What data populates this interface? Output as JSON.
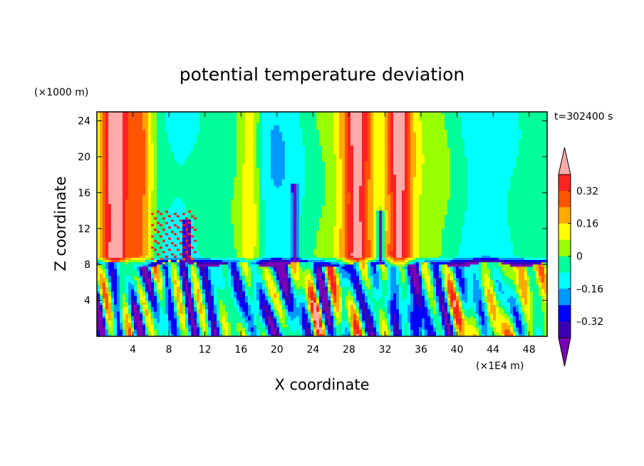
{
  "chart_data": {
    "type": "heatmap",
    "title": "potential temperature deviation",
    "xlabel": "X coordinate",
    "ylabel": "Z coordinate",
    "x_unit": "(×1E4 m)",
    "y_unit": "(×1000 m)",
    "time_label": "t=302400 s",
    "xlim": [
      0,
      50
    ],
    "ylim": [
      0,
      25
    ],
    "x_ticks": [
      4,
      8,
      12,
      16,
      20,
      24,
      28,
      32,
      36,
      40,
      44,
      48
    ],
    "y_ticks": [
      4,
      8,
      12,
      16,
      20,
      24
    ],
    "colorbar": {
      "levels": [
        -0.4,
        -0.32,
        -0.24,
        -0.16,
        -0.08,
        0,
        0.08,
        0.16,
        0.24,
        0.32,
        0.4
      ],
      "tick_labels": [
        "0.32",
        "0.16",
        "0",
        "–0.16",
        "–0.32"
      ],
      "tick_values": [
        0.32,
        0.16,
        0,
        -0.16,
        -0.32
      ],
      "colors": [
        "#7a00b4",
        "#3c00b4",
        "#0000ff",
        "#0099ff",
        "#00ffff",
        "#00ff99",
        "#99ff00",
        "#ffff00",
        "#ffaa00",
        "#ff5500",
        "#ff2222",
        "#ffaaaa"
      ]
    },
    "features": {
      "tropopause_height": 8,
      "warm_columns_x": [
        2,
        5,
        17,
        29,
        33.5
      ]
    }
  },
  "colors": {
    "background": "#ffffff",
    "frame": "#000000"
  }
}
